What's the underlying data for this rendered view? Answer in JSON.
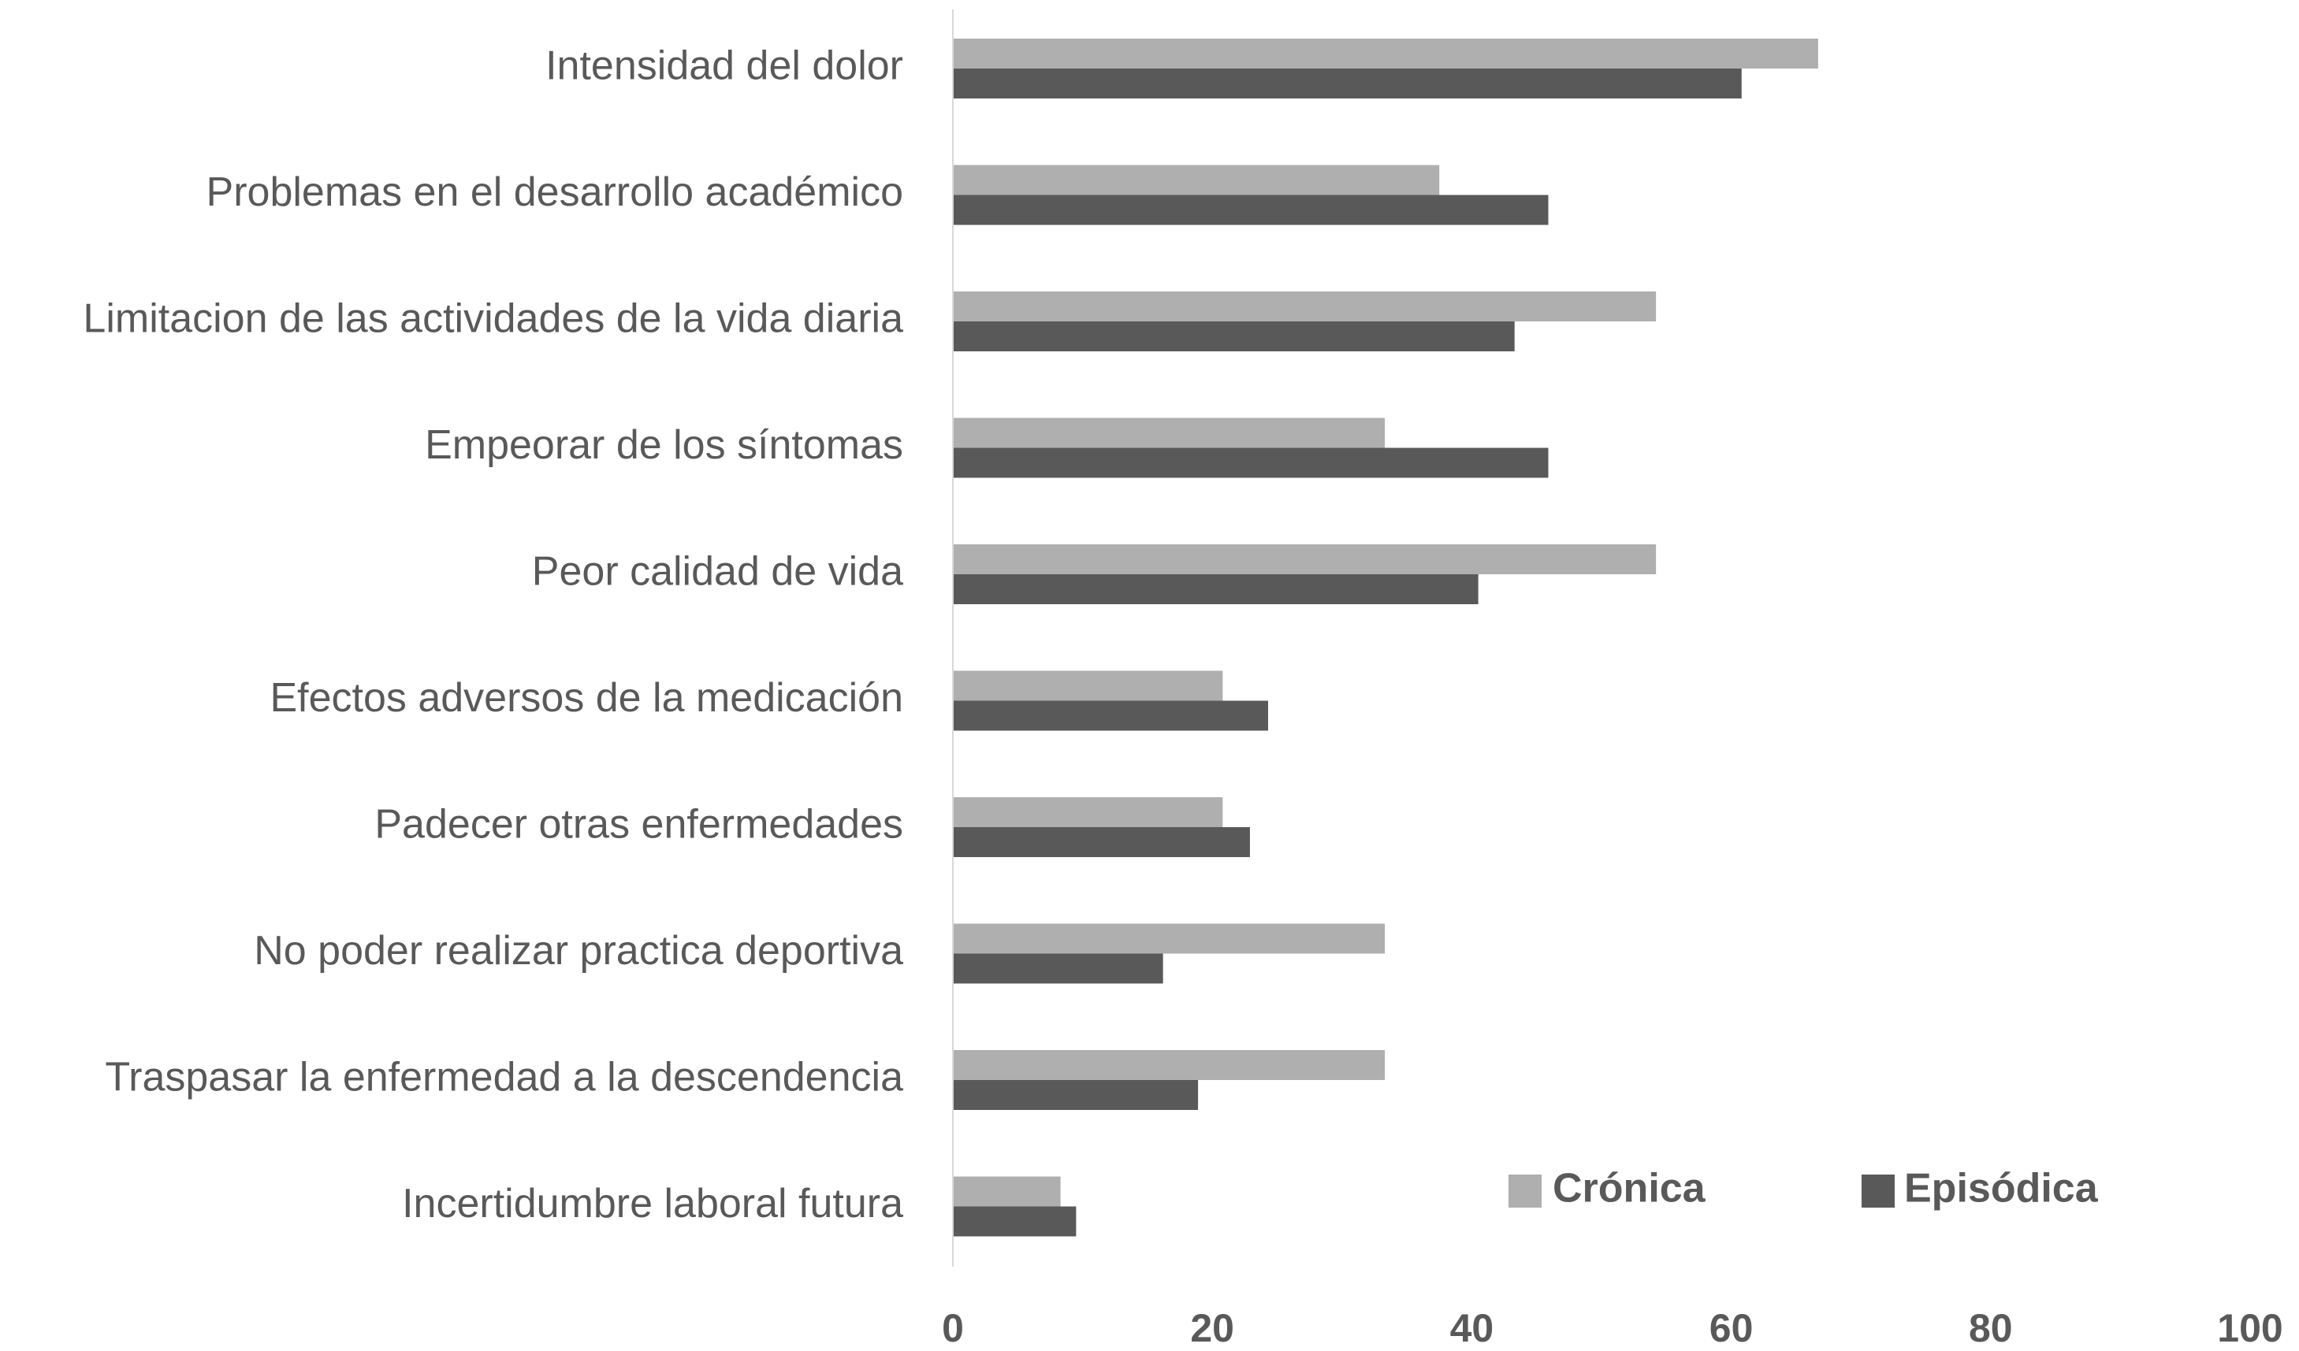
{
  "chart_data": {
    "type": "bar",
    "orientation": "horizontal",
    "title": "",
    "xlabel": "",
    "ylabel": "",
    "xlim": [
      0,
      100
    ],
    "x_ticks": [
      0,
      20,
      40,
      60,
      80,
      100
    ],
    "grid": false,
    "legend_position": "bottom-right",
    "categories": [
      "Intensidad del dolor",
      "Problemas en el desarrollo académico",
      "Limitacion de las actividades de la vida diaria",
      "Empeorar de los síntomas",
      "Peor calidad de vida",
      "Efectos adversos de la medicación",
      "Padecer otras enfermedades",
      "No poder realizar practica deportiva",
      "Traspasar la enfermedad a la descendencia",
      "Incertidumbre laboral futura"
    ],
    "series": [
      {
        "name": "Crónica",
        "color": "#AFAFAF",
        "values": [
          66.7,
          37.5,
          54.2,
          33.3,
          54.2,
          20.8,
          20.8,
          33.3,
          33.3,
          8.3
        ]
      },
      {
        "name": "Episódica",
        "color": "#595959",
        "values": [
          60.8,
          45.9,
          43.3,
          45.9,
          40.5,
          24.3,
          22.9,
          16.2,
          18.9,
          9.5
        ]
      }
    ]
  }
}
